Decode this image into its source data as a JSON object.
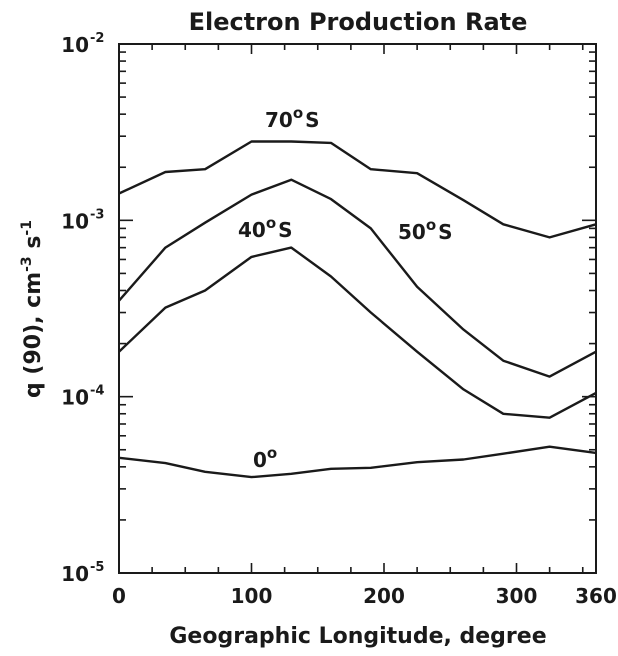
{
  "chart_data": {
    "type": "line",
    "title": "Electron Production Rate",
    "xlabel": "Geographic Longitude, degree",
    "ylabel": {
      "base": "q (90), cm",
      "exp1": "-3",
      "mid": " s",
      "exp2": "-1"
    },
    "xlim": [
      0,
      360
    ],
    "ylim": [
      1e-05,
      0.01
    ],
    "yscale": "log",
    "grid": false,
    "x_ticks": [
      {
        "value": 0,
        "label": "0"
      },
      {
        "value": 100,
        "label": "100"
      },
      {
        "value": 200,
        "label": "200"
      },
      {
        "value": 300,
        "label": "300"
      },
      {
        "value": 360,
        "label": "360"
      }
    ],
    "y_ticks": [
      {
        "value": 1e-05,
        "base": "10",
        "exp": "-5"
      },
      {
        "value": 0.0001,
        "base": "10",
        "exp": "-4"
      },
      {
        "value": 0.001,
        "base": "10",
        "exp": "-3"
      },
      {
        "value": 0.01,
        "base": "10",
        "exp": "-2"
      }
    ],
    "series": [
      {
        "name": "70°S",
        "label_base": "70",
        "label_sup": "o",
        "label_suffix": "S",
        "x": [
          0,
          35,
          65,
          100,
          130,
          160,
          190,
          225,
          260,
          290,
          325,
          360
        ],
        "y": [
          0.00142,
          0.00188,
          0.00195,
          0.0028,
          0.0028,
          0.00275,
          0.00195,
          0.00185,
          0.0013,
          0.00095,
          0.0008,
          0.00095
        ]
      },
      {
        "name": "50°S",
        "label_base": "50",
        "label_sup": "o",
        "label_suffix": "S",
        "x": [
          0,
          35,
          65,
          100,
          130,
          160,
          190,
          225,
          260,
          290,
          325,
          360
        ],
        "y": [
          0.00035,
          0.0007,
          0.00097,
          0.0014,
          0.0017,
          0.00132,
          0.0009,
          0.00042,
          0.00024,
          0.00016,
          0.00013,
          0.00018
        ]
      },
      {
        "name": "40°S",
        "label_base": "40",
        "label_sup": "o",
        "label_suffix": "S",
        "x": [
          0,
          35,
          65,
          100,
          130,
          160,
          190,
          225,
          260,
          290,
          325,
          360
        ],
        "y": [
          0.00018,
          0.00032,
          0.0004,
          0.00062,
          0.0007,
          0.00048,
          0.0003,
          0.00018,
          0.00011,
          8e-05,
          7.6e-05,
          0.000105
        ]
      },
      {
        "name": "0°",
        "label_base": "0",
        "label_sup": "o",
        "label_suffix": "",
        "x": [
          0,
          35,
          65,
          100,
          130,
          160,
          190,
          225,
          260,
          290,
          325,
          360
        ],
        "y": [
          4.5e-05,
          4.2e-05,
          3.75e-05,
          3.5e-05,
          3.65e-05,
          3.9e-05,
          3.95e-05,
          4.25e-05,
          4.4e-05,
          4.75e-05,
          5.2e-05,
          4.8e-05
        ]
      }
    ]
  }
}
